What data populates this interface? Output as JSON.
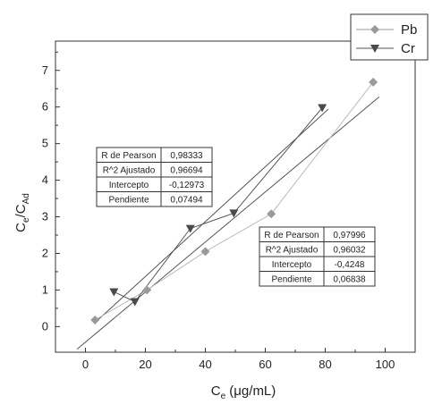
{
  "chart_data": {
    "type": "scatter",
    "xlabel": {
      "main": "C",
      "sub": "e",
      "unit": " (μg/mL)"
    },
    "ylabel": {
      "c1": "C",
      "s1": "e",
      "slash": "/C",
      "s2": "Ad"
    },
    "xlim": [
      -10,
      110
    ],
    "ylim": [
      -0.7,
      7.8
    ],
    "x_ticks": [
      "0",
      "20",
      "40",
      "60",
      "80",
      "100"
    ],
    "y_ticks": [
      "0",
      "1",
      "2",
      "3",
      "4",
      "5",
      "6",
      "7"
    ],
    "legend_position": "top-right",
    "series": [
      {
        "name": "Pb",
        "marker": "diamond",
        "color": "#9a9a9a",
        "line_color": "#bbbbbb",
        "x": [
          3.2,
          20.5,
          40,
          62,
          96
        ],
        "y": [
          0.18,
          1.0,
          2.05,
          3.08,
          6.68
        ],
        "fit": {
          "slope": 0.06838,
          "intercept": -0.4248
        }
      },
      {
        "name": "Cr",
        "marker": "triangle-down",
        "color": "#4a4a4a",
        "line_color": "#555555",
        "x": [
          9.5,
          16.5,
          35,
          49.5,
          79
        ],
        "y": [
          0.95,
          0.68,
          2.68,
          3.1,
          5.98
        ],
        "fit": {
          "slope": 0.07494,
          "intercept": -0.12973
        }
      }
    ],
    "stat_tables": [
      {
        "rows": [
          [
            "R de Pearson",
            "0,98333"
          ],
          [
            "R^2 Ajustado",
            "0,96694"
          ],
          [
            "Intercepto",
            "-0,12973"
          ],
          [
            "Pendiente",
            "0,07494"
          ]
        ]
      },
      {
        "rows": [
          [
            "R de Pearson",
            "0,97996"
          ],
          [
            "R^2 Ajustado",
            "0,96032"
          ],
          [
            "Intercepto",
            "-0,4248"
          ],
          [
            "Pendiente",
            "0,06838"
          ]
        ]
      }
    ]
  }
}
